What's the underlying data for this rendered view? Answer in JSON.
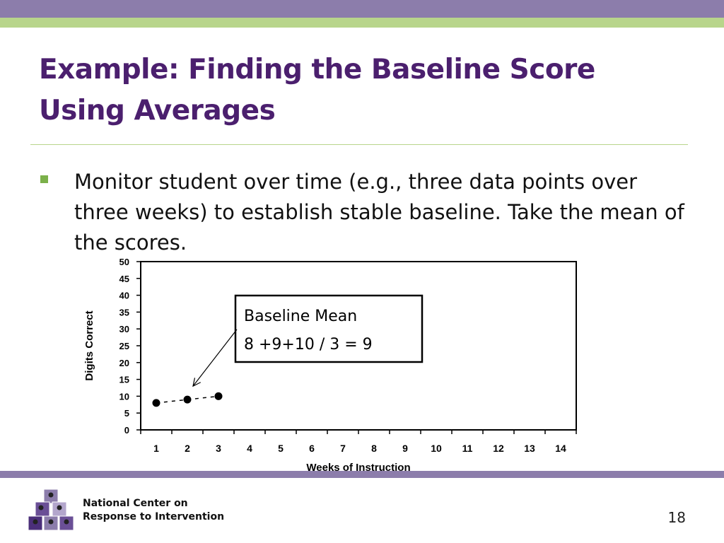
{
  "slide": {
    "title_line1": "Example: Finding the Baseline Score",
    "title_line2": "Using Averages",
    "bullet": "Monitor student over time (e.g., three data points over three weeks) to establish stable baseline. Take the mean of the scores.",
    "page_number": "18"
  },
  "footer": {
    "org_line1": "National Center on",
    "org_line2": "Response to Intervention",
    "colors": {
      "purple": "#8c7dab",
      "green": "#b8d58b",
      "title": "#4b1f6e"
    }
  },
  "chart_data": {
    "type": "scatter",
    "xlabel": "Weeks of Instruction",
    "ylabel": "Digits Correct",
    "x_categories": [
      "1",
      "2",
      "3",
      "4",
      "5",
      "6",
      "7",
      "8",
      "9",
      "10",
      "11",
      "12",
      "13",
      "14"
    ],
    "y_ticks": [
      0,
      5,
      10,
      15,
      20,
      25,
      30,
      35,
      40,
      45,
      50
    ],
    "ylim": [
      0,
      50
    ],
    "series": [
      {
        "x": [
          1,
          2,
          3
        ],
        "y": [
          8,
          9,
          10
        ],
        "connected": "dashed"
      }
    ],
    "annotation": {
      "line1": "Baseline Mean",
      "line2": "8 +9+10 / 3 = 9",
      "arrow_target": {
        "x": 2,
        "y": 13
      }
    },
    "grid": false
  }
}
